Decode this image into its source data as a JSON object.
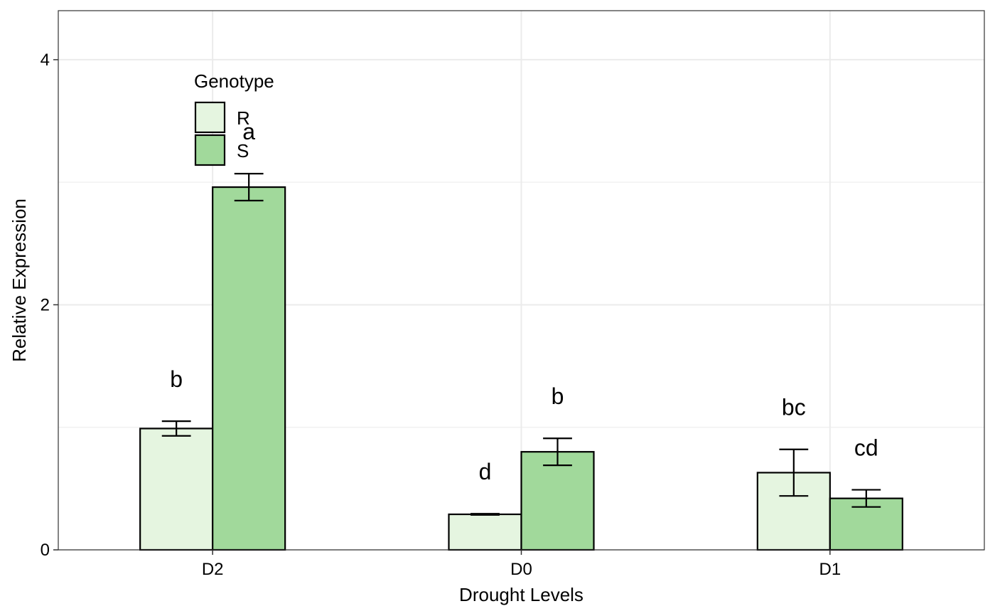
{
  "chart_data": {
    "type": "bar",
    "title": "",
    "xlabel": "Drought Levels",
    "ylabel": "Relative Expression",
    "categories": [
      "D2",
      "D0",
      "D1"
    ],
    "ylim": [
      0,
      4.4
    ],
    "yticks": [
      0,
      2,
      4
    ],
    "grid": true,
    "legend": {
      "title": "Genotype",
      "placement": "top-left"
    },
    "series": [
      {
        "name": "R",
        "color": "#e5f5e0",
        "values": [
          0.99,
          0.29,
          0.63
        ],
        "error": [
          0.06,
          0.005,
          0.19
        ],
        "labels": [
          "b",
          "d",
          "bc"
        ]
      },
      {
        "name": "S",
        "color": "#a1d99b",
        "values": [
          2.96,
          0.8,
          0.42
        ],
        "error": [
          0.11,
          0.11,
          0.07
        ],
        "labels": [
          "a",
          "b",
          "cd"
        ]
      }
    ]
  }
}
